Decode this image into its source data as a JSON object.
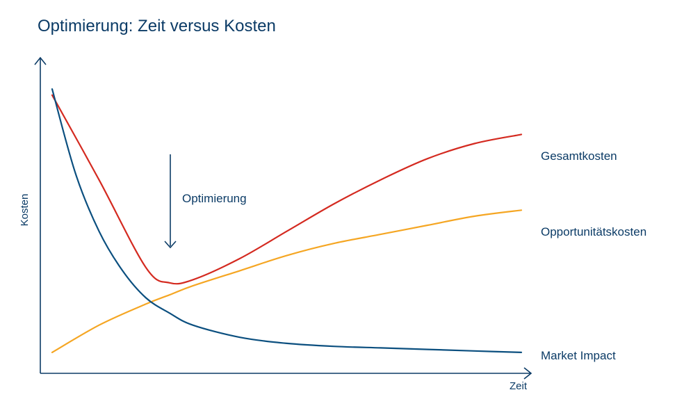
{
  "chart_data": {
    "type": "line",
    "title": "Optimierung: Zeit versus Kosten",
    "xlabel": "Zeit",
    "ylabel": "Kosten",
    "x_ticks_shown": false,
    "y_ticks_shown": false,
    "grid": false,
    "annotation": {
      "text": "Optimierung",
      "arrow": "down",
      "x": 2.5
    },
    "colors": {
      "axis": "#0b3b66",
      "text": "#0b3b66"
    },
    "series": [
      {
        "name": "Gesamtkosten",
        "color": "#d42a20",
        "x": [
          0,
          1,
          2,
          2.5,
          3,
          4,
          5,
          6,
          7,
          8,
          9,
          10
        ],
        "y": [
          8.8,
          6.0,
          3.1,
          2.6,
          2.7,
          3.4,
          4.3,
          5.2,
          6.0,
          6.7,
          7.2,
          7.5
        ]
      },
      {
        "name": "Opportunitätskosten",
        "color": "#f5a623",
        "x": [
          0,
          1,
          2,
          2.5,
          3,
          4,
          5,
          6,
          7,
          8,
          9,
          10
        ],
        "y": [
          0.3,
          1.2,
          1.9,
          2.2,
          2.5,
          3.0,
          3.5,
          3.9,
          4.2,
          4.5,
          4.8,
          5.0
        ]
      },
      {
        "name": "Market Impact",
        "color": "#0b4f7f",
        "x": [
          0,
          0.5,
          1,
          1.5,
          2,
          2.5,
          3,
          4,
          5,
          6,
          7,
          8,
          9,
          10
        ],
        "y": [
          9.0,
          6.2,
          4.3,
          3.0,
          2.1,
          1.6,
          1.2,
          0.8,
          0.6,
          0.5,
          0.45,
          0.4,
          0.35,
          0.3
        ]
      }
    ]
  }
}
